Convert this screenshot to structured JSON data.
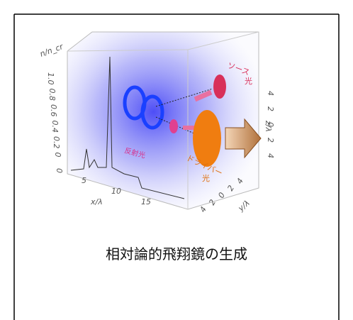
{
  "figure": {
    "density_axis": "n/n_cr",
    "density_ticks": [
      "1.0",
      "0.8",
      "0.6",
      "0.4",
      "0.2",
      "0",
      "0"
    ],
    "x_axis": "x/λ",
    "x_ticks": [
      "5",
      "10",
      "15"
    ],
    "z_axis": "z/λ",
    "z_ticks": [
      "4",
      "2",
      "0",
      "2",
      "4"
    ],
    "y_axis": "y/λ",
    "y_ticks": [
      "4",
      "2",
      "0",
      "2",
      "4"
    ],
    "source_light": [
      "ソース",
      "光"
    ],
    "driver_light": [
      "ドライバー",
      "光"
    ],
    "reflected_light": "反射光"
  },
  "caption": "相対論的飛翔鏡の生成"
}
